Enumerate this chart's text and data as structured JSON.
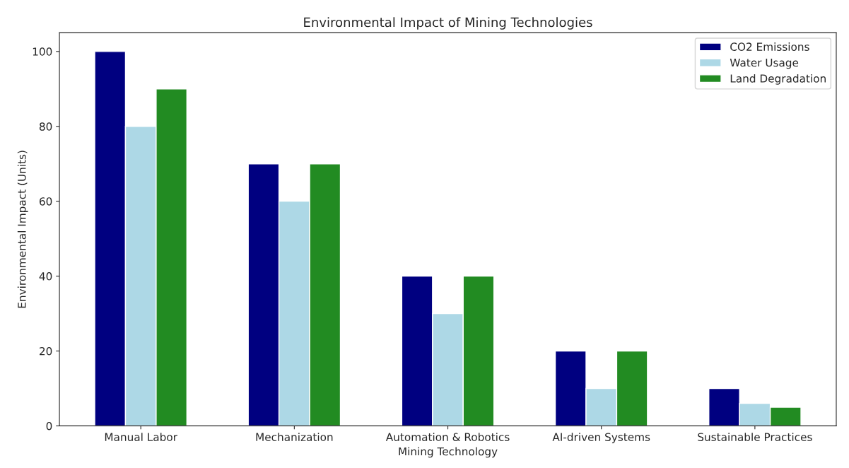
{
  "chart_data": {
    "type": "bar",
    "title": "Environmental Impact of Mining Technologies",
    "xlabel": "Mining Technology",
    "ylabel": "Environmental Impact (Units)",
    "categories": [
      "Manual Labor",
      "Mechanization",
      "Automation & Robotics",
      "AI-driven Systems",
      "Sustainable Practices"
    ],
    "series": [
      {
        "name": "CO2 Emissions",
        "color": "#000080",
        "values": [
          100,
          70,
          40,
          20,
          10
        ]
      },
      {
        "name": "Water Usage",
        "color": "#add8e6",
        "values": [
          80,
          60,
          30,
          10,
          6
        ]
      },
      {
        "name": "Land Degradation",
        "color": "#228b22",
        "values": [
          90,
          70,
          40,
          20,
          5
        ]
      }
    ],
    "ylim": [
      0,
      105
    ],
    "yticks": [
      0,
      20,
      40,
      60,
      80,
      100
    ],
    "grid": false,
    "legend": "top right"
  }
}
